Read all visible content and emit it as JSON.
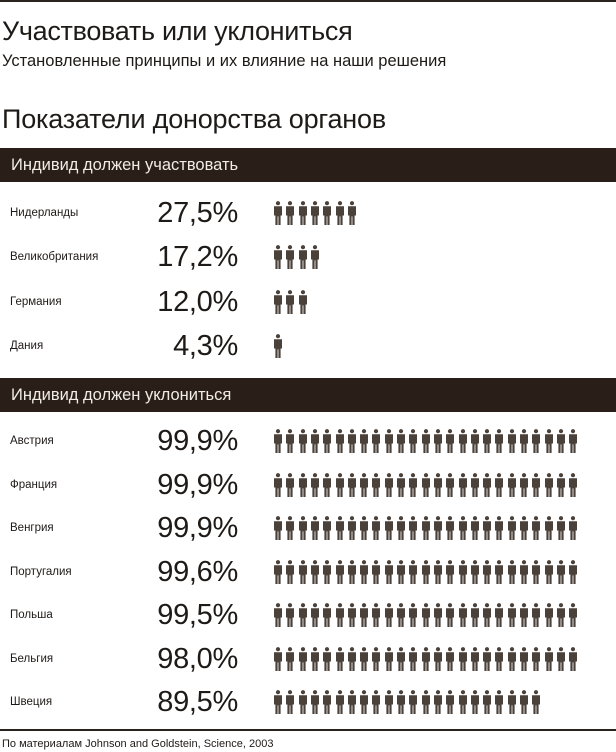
{
  "header": {
    "title": "Участвовать или уклониться",
    "subtitle": "Установленные принципы и их влияние на наши решения"
  },
  "chart_data": {
    "type": "bar",
    "title": "Показатели донорства органов",
    "unit": "%",
    "icon": "person-icon",
    "icon_color": "#4a413a",
    "band_color": "#2a1f18",
    "groups": [
      {
        "name": "Индивид должен участвовать",
        "rows": [
          {
            "category": "Нидерланды",
            "label": "27,5%",
            "value": 27.5
          },
          {
            "category": "Великобритания",
            "label": "17,2%",
            "value": 17.2
          },
          {
            "category": "Германия",
            "label": "12,0%",
            "value": 12.0
          },
          {
            "category": "Дания",
            "label": "4,3%",
            "value": 4.3
          }
        ]
      },
      {
        "name": "Индивид должен уклониться",
        "rows": [
          {
            "category": "Австрия",
            "label": "99,9%",
            "value": 99.9
          },
          {
            "category": "Франция",
            "label": "99,9%",
            "value": 99.9
          },
          {
            "category": "Венгрия",
            "label": "99,9%",
            "value": 99.9
          },
          {
            "category": "Португалия",
            "label": "99,6%",
            "value": 99.6
          },
          {
            "category": "Польша",
            "label": "99,5%",
            "value": 99.5
          },
          {
            "category": "Бельгия",
            "label": "98,0%",
            "value": 98.0
          },
          {
            "category": "Швеция",
            "label": "89,5%",
            "value": 89.5
          }
        ]
      }
    ]
  },
  "footer": {
    "source": "По материалам Johnson and Goldstein, Science, 2003"
  }
}
